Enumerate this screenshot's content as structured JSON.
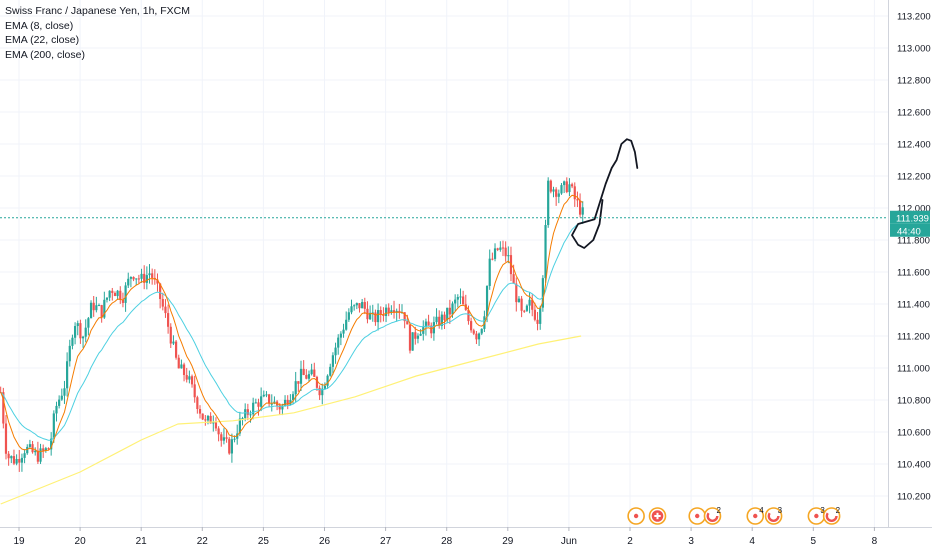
{
  "legend": {
    "symbol": "Swiss Franc / Japanese Yen, 1h, FXCM",
    "indicators": [
      "EMA (8, close)",
      "EMA (22, close)",
      "EMA (200, close)"
    ]
  },
  "price_axis": {
    "last_price": "111.939",
    "countdown": "44:40"
  },
  "colors": {
    "up": "#26a69a",
    "down": "#ef5350",
    "ema8": "#f57c00",
    "ema22": "#4dd0e1",
    "ema200": "#fff176",
    "last_price_line": "#26a69a",
    "grid": "#f0f3fa",
    "axis_text": "#131722"
  },
  "events": [
    {
      "x": 10.1,
      "icon": "target-icon",
      "count": ""
    },
    {
      "x": 10.45,
      "icon": "swiss-flag-icon",
      "count": ""
    },
    {
      "x": 11.1,
      "icon": "target-icon",
      "count": ""
    },
    {
      "x": 11.35,
      "icon": "swirl-icon",
      "count": "2"
    },
    {
      "x": 12.05,
      "icon": "target-icon",
      "count": "4"
    },
    {
      "x": 12.35,
      "icon": "swirl-icon",
      "count": "3"
    },
    {
      "x": 13.05,
      "icon": "target-icon",
      "count": "3"
    },
    {
      "x": 13.3,
      "icon": "swirl-icon",
      "count": "2"
    }
  ],
  "chart_data": {
    "type": "candlestick",
    "title": "Swiss Franc / Japanese Yen, 1h, FXCM",
    "x_ticks": [
      {
        "x": 0,
        "label": "19"
      },
      {
        "x": 1,
        "label": "20"
      },
      {
        "x": 2,
        "label": "21"
      },
      {
        "x": 3,
        "label": "22"
      },
      {
        "x": 4,
        "label": "25"
      },
      {
        "x": 5,
        "label": "26"
      },
      {
        "x": 6,
        "label": "27"
      },
      {
        "x": 7,
        "label": "28"
      },
      {
        "x": 8,
        "label": "29"
      },
      {
        "x": 9,
        "label": "Jun"
      },
      {
        "x": 10,
        "label": "2"
      },
      {
        "x": 11,
        "label": "3"
      },
      {
        "x": 12,
        "label": "4"
      },
      {
        "x": 13,
        "label": "5"
      },
      {
        "x": 14,
        "label": "8"
      }
    ],
    "y_ticks": [
      "110.200",
      "110.400",
      "110.600",
      "110.800",
      "111.000",
      "111.200",
      "111.400",
      "111.600",
      "111.800",
      "112.000",
      "112.200",
      "112.400",
      "112.600",
      "112.800",
      "113.000",
      "113.200"
    ],
    "ylim": [
      110.05,
      113.25
    ],
    "xlim": [
      -0.3,
      14.1
    ],
    "grid": true,
    "last_price": 111.939,
    "anchors": [
      [
        -0.3,
        110.85
      ],
      [
        -0.2,
        110.45
      ],
      [
        -0.05,
        110.42
      ],
      [
        0.1,
        110.5
      ],
      [
        0.3,
        110.45
      ],
      [
        0.5,
        110.5
      ],
      [
        0.6,
        110.75
      ],
      [
        0.75,
        110.9
      ],
      [
        0.9,
        111.3
      ],
      [
        1.05,
        111.2
      ],
      [
        1.2,
        111.4
      ],
      [
        1.35,
        111.35
      ],
      [
        1.5,
        111.5
      ],
      [
        1.7,
        111.45
      ],
      [
        1.85,
        111.6
      ],
      [
        2.0,
        111.55
      ],
      [
        2.15,
        111.6
      ],
      [
        2.3,
        111.45
      ],
      [
        2.45,
        111.25
      ],
      [
        2.6,
        111.0
      ],
      [
        2.75,
        110.95
      ],
      [
        2.9,
        110.8
      ],
      [
        3.05,
        110.65
      ],
      [
        3.2,
        110.7
      ],
      [
        3.3,
        110.55
      ],
      [
        3.45,
        110.5
      ],
      [
        3.6,
        110.65
      ],
      [
        3.8,
        110.75
      ],
      [
        3.95,
        110.8
      ],
      [
        4.1,
        110.8
      ],
      [
        4.3,
        110.75
      ],
      [
        4.45,
        110.85
      ],
      [
        4.6,
        110.95
      ],
      [
        4.8,
        110.95
      ],
      [
        4.95,
        110.85
      ],
      [
        5.1,
        111.05
      ],
      [
        5.25,
        111.2
      ],
      [
        5.4,
        111.35
      ],
      [
        5.6,
        111.4
      ],
      [
        5.8,
        111.3
      ],
      [
        5.95,
        111.35
      ],
      [
        6.1,
        111.4
      ],
      [
        6.3,
        111.35
      ],
      [
        6.4,
        111.15
      ],
      [
        6.55,
        111.25
      ],
      [
        6.75,
        111.25
      ],
      [
        6.9,
        111.3
      ],
      [
        7.05,
        111.35
      ],
      [
        7.2,
        111.45
      ],
      [
        7.35,
        111.3
      ],
      [
        7.5,
        111.2
      ],
      [
        7.6,
        111.3
      ],
      [
        7.7,
        111.65
      ],
      [
        7.85,
        111.75
      ],
      [
        8.0,
        111.7
      ],
      [
        8.1,
        111.5
      ],
      [
        8.25,
        111.3
      ],
      [
        8.35,
        111.4
      ],
      [
        8.5,
        111.3
      ],
      [
        8.6,
        111.7
      ],
      [
        8.65,
        112.15
      ],
      [
        8.85,
        112.1
      ],
      [
        9.0,
        112.15
      ],
      [
        9.1,
        112.05
      ],
      [
        9.25,
        111.95
      ]
    ],
    "ema200": [
      [
        -0.3,
        110.15
      ],
      [
        1.0,
        110.35
      ],
      [
        2.0,
        110.55
      ],
      [
        2.6,
        110.65
      ],
      [
        3.5,
        110.67
      ],
      [
        4.5,
        110.72
      ],
      [
        5.5,
        110.82
      ],
      [
        6.5,
        110.95
      ],
      [
        7.5,
        111.05
      ],
      [
        8.5,
        111.15
      ],
      [
        9.2,
        111.2
      ]
    ],
    "drawing": [
      [
        9.55,
        112.05
      ],
      [
        9.5,
        111.9
      ],
      [
        9.4,
        111.8
      ],
      [
        9.25,
        111.75
      ],
      [
        9.15,
        111.77
      ],
      [
        9.05,
        111.83
      ],
      [
        9.15,
        111.9
      ],
      [
        9.42,
        111.93
      ],
      [
        9.6,
        112.15
      ],
      [
        9.7,
        112.25
      ],
      [
        9.78,
        112.3
      ],
      [
        9.86,
        112.4
      ],
      [
        9.95,
        112.43
      ],
      [
        10.02,
        112.42
      ],
      [
        10.08,
        112.35
      ],
      [
        10.12,
        112.25
      ]
    ]
  }
}
